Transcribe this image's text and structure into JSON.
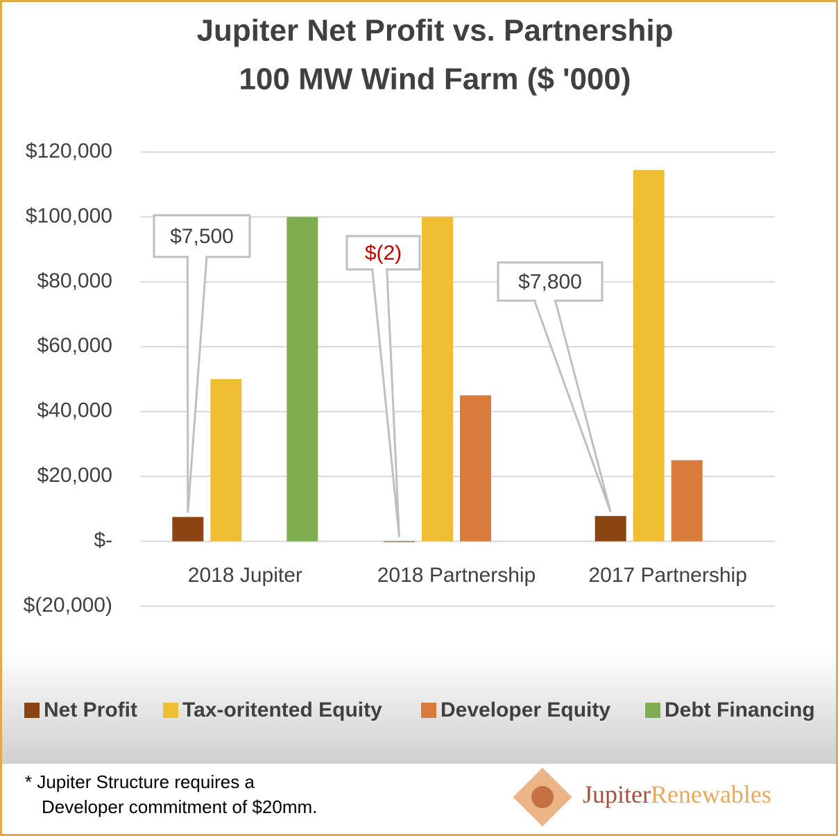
{
  "chart_data": {
    "type": "bar",
    "title": "Jupiter Net Profit vs. Partnership",
    "subtitle": "100 MW Wind Farm ($  '000)",
    "categories": [
      "2018 Jupiter",
      "2018 Partnership",
      "2017 Partnership"
    ],
    "series": [
      {
        "name": "Net Profit",
        "color": "#8b4513",
        "values": [
          7500,
          -2,
          7800
        ],
        "value_labels": [
          "$7,500",
          "$(2)",
          "$7,800"
        ]
      },
      {
        "name": "Tax-oritented Equity",
        "color": "#f0be32",
        "values": [
          50000,
          100000,
          114500
        ]
      },
      {
        "name": "Developer Equity",
        "color": "#d97b3a",
        "values": [
          null,
          45000,
          25000
        ]
      },
      {
        "name": "Debt Financing",
        "color": "#7fad4f",
        "values": [
          100000,
          null,
          null
        ]
      }
    ],
    "ylim": [
      -20000,
      120000
    ],
    "yticks": [
      {
        "value": -20000,
        "label": "$(20,000)"
      },
      {
        "value": 0,
        "label": "$-"
      },
      {
        "value": 20000,
        "label": "$20,000"
      },
      {
        "value": 40000,
        "label": "$40,000"
      },
      {
        "value": 60000,
        "label": "$60,000"
      },
      {
        "value": 80000,
        "label": "$80,000"
      },
      {
        "value": 100000,
        "label": "$100,000"
      },
      {
        "value": 120000,
        "label": "$120,000"
      }
    ],
    "grid": true,
    "legend": "bottom",
    "footnote": [
      "* Jupiter Structure requires a",
      "Developer commitment of $20mm."
    ],
    "logo": [
      "Jupiter",
      "Renewables"
    ]
  }
}
